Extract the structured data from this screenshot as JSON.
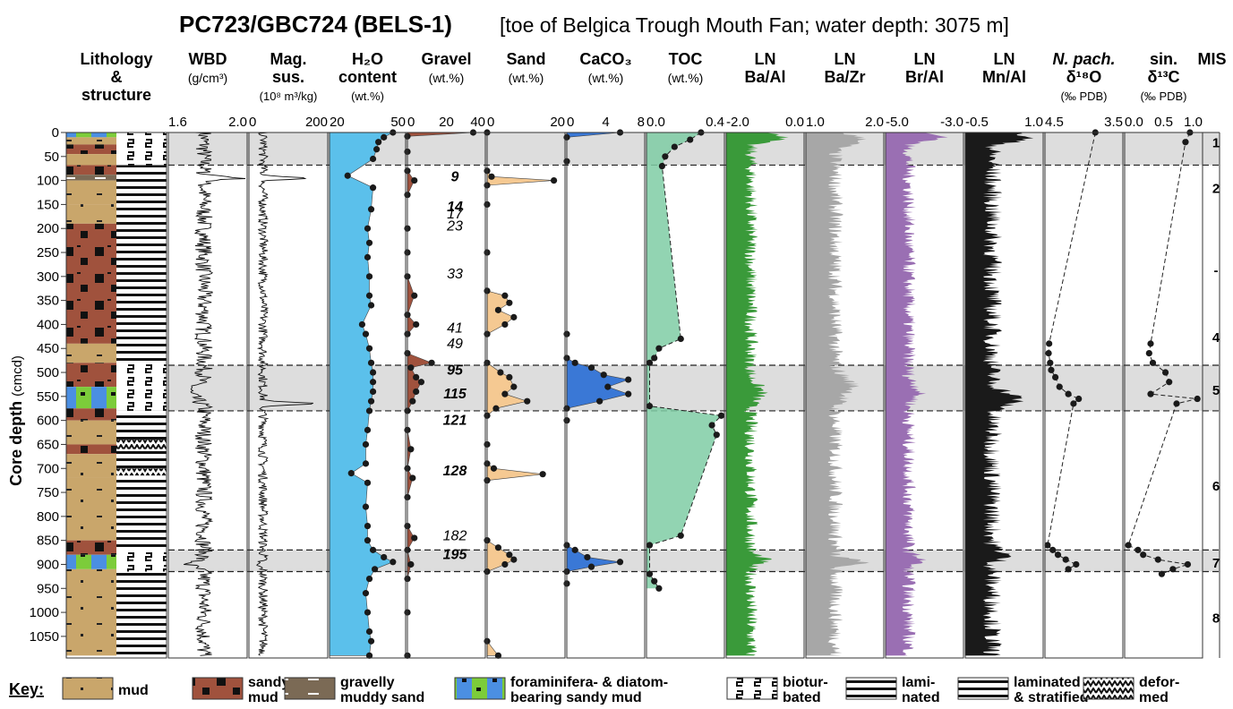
{
  "title": {
    "main": "PC723/GBC724 (BELS-1)",
    "sub": "[toe of Belgica Trough Mouth Fan; water depth: 3075 m]"
  },
  "y_axis": {
    "label": "Core depth",
    "unit": "(cmcd)",
    "ticks": [
      0,
      50,
      100,
      150,
      200,
      250,
      300,
      350,
      400,
      450,
      500,
      550,
      600,
      650,
      700,
      750,
      800,
      850,
      900,
      950,
      1000,
      1050
    ]
  },
  "columns": [
    {
      "id": "lith",
      "h1": "Lithology",
      "h2": "&",
      "h3": "structure",
      "ticks": []
    },
    {
      "id": "wbd",
      "h1": "WBD",
      "h2": "(g/cm³)",
      "h3": "",
      "ticks": [
        "1.6",
        "2.0"
      ]
    },
    {
      "id": "mag",
      "h1": "Mag.",
      "h2": "sus.",
      "h3": "(10⁸ m³/kg)",
      "ticks": [
        "0",
        "200"
      ]
    },
    {
      "id": "h2o",
      "h1": "H₂O",
      "h2": "content",
      "h3": "(wt.%)",
      "ticks": [
        "20",
        "50"
      ]
    },
    {
      "id": "gravel",
      "h1": "Gravel",
      "h2": "(wt.%)",
      "h3": "",
      "ticks": [
        "0",
        "20",
        "40"
      ]
    },
    {
      "id": "sand",
      "h1": "Sand",
      "h2": "(wt.%)",
      "h3": "",
      "ticks": [
        "0",
        "20"
      ]
    },
    {
      "id": "caco3",
      "h1": "CaCO₃",
      "h2": "(wt.%)",
      "h3": "",
      "ticks": [
        "0",
        "4",
        "8"
      ]
    },
    {
      "id": "toc",
      "h1": "TOC",
      "h2": "(wt.%)",
      "h3": "",
      "ticks": [
        "0.0",
        "0.4"
      ]
    },
    {
      "id": "baal",
      "h1": "LN",
      "h2": "Ba/Al",
      "h3": "",
      "ticks": [
        "-2.0",
        "0.0"
      ]
    },
    {
      "id": "bazr",
      "h1": "LN",
      "h2": "Ba/Zr",
      "h3": "",
      "ticks": [
        "1.0",
        "2.0"
      ]
    },
    {
      "id": "bral",
      "h1": "LN",
      "h2": "Br/Al",
      "h3": "",
      "ticks": [
        "-5.0",
        "-3.0"
      ]
    },
    {
      "id": "mnal",
      "h1": "LN",
      "h2": "Mn/Al",
      "h3": "",
      "ticks": [
        "-0.5",
        "1.0"
      ]
    },
    {
      "id": "d18o",
      "h1": "N. pach.",
      "h2": "δ¹⁸O",
      "h3": "(‰ PDB)",
      "ticks": "4.5",
      "ticks2": [
        "4.5",
        "3.5"
      ]
    },
    {
      "id": "d13c",
      "h1": "sin.",
      "h2": "δ¹³C",
      "h3": "(‰ PDB)",
      "ticks": "0.0",
      "ticks2": [
        "0.0",
        "0.5",
        "1.0"
      ]
    },
    {
      "id": "mis",
      "h1": "MIS",
      "h2": "",
      "h3": "",
      "ticks": []
    }
  ],
  "mis_stages": [
    {
      "label": "1",
      "depth": 20
    },
    {
      "label": "2",
      "depth": 115
    },
    {
      "label": "-",
      "depth": 285
    },
    {
      "label": "4",
      "depth": 425
    },
    {
      "label": "5",
      "depth": 535
    },
    {
      "label": "6",
      "depth": 735
    },
    {
      "label": "7",
      "depth": 895
    },
    {
      "label": "8",
      "depth": 1010
    }
  ],
  "shaded_intervals": [
    [
      0,
      68
    ],
    [
      485,
      580
    ],
    [
      870,
      915
    ]
  ],
  "ages": [
    {
      "text": "9",
      "depth": 92,
      "bold": true
    },
    {
      "text": "14",
      "depth": 155,
      "bold": true
    },
    {
      "text": "17",
      "depth": 170,
      "bold": false
    },
    {
      "text": "23",
      "depth": 195,
      "bold": false
    },
    {
      "text": "33",
      "depth": 295,
      "bold": false
    },
    {
      "text": "41",
      "depth": 408,
      "bold": false
    },
    {
      "text": "49",
      "depth": 440,
      "bold": false
    },
    {
      "text": "95",
      "depth": 495,
      "bold": true
    },
    {
      "text": "115",
      "depth": 545,
      "bold": true
    },
    {
      "text": "121",
      "depth": 600,
      "bold": true
    },
    {
      "text": "128",
      "depth": 705,
      "bold": true
    },
    {
      "text": "182",
      "depth": 840,
      "bold": false
    },
    {
      "text": "195",
      "depth": 880,
      "bold": true
    }
  ],
  "key": {
    "label": "Key:",
    "items": [
      {
        "id": "mud",
        "l1": "mud",
        "l2": ""
      },
      {
        "id": "sandy-mud",
        "l1": "sandy",
        "l2": "mud"
      },
      {
        "id": "gravelly",
        "l1": "gravelly",
        "l2": "muddy sand"
      },
      {
        "id": "foram",
        "l1": "foraminifera- & diatom-",
        "l2": "bearing sandy mud"
      },
      {
        "id": "bioturbated",
        "l1": "biotur-",
        "l2": "bated"
      },
      {
        "id": "laminated",
        "l1": "lami-",
        "l2": "nated"
      },
      {
        "id": "lam-strat",
        "l1": "laminated",
        "l2": "& stratified"
      },
      {
        "id": "deformed",
        "l1": "defor-",
        "l2": "med"
      }
    ]
  },
  "colors": {
    "h2o": "#5bc0eb",
    "gravel": "#a0523d",
    "sand": "#f5c992",
    "caco3": "#3a78d6",
    "toc": "#7fcca5",
    "baal": "#3a9a3a",
    "bazr": "#a7a7a7",
    "bral": "#9a6fb3",
    "mnal": "#1a1a1a",
    "shade": "#dddddd",
    "mud": "#c9a66b",
    "sandy_mud": "#a0523d",
    "gravelly": "#7b6a55",
    "foram_blue": "#4b8fe2",
    "foram_green": "#7ccc3a"
  },
  "chart_data": {
    "type": "line",
    "title": "PC723/GBC724 (BELS-1)",
    "ylabel": "Core depth (cmcd)",
    "ylim": [
      0,
      1095
    ],
    "y_inverted": true,
    "series": [
      {
        "name": "H₂O content",
        "unit": "wt.%",
        "xlim": [
          20,
          62
        ],
        "points": [
          [
            0,
            55
          ],
          [
            10,
            50
          ],
          [
            20,
            47
          ],
          [
            35,
            46
          ],
          [
            55,
            44
          ],
          [
            90,
            30
          ],
          [
            115,
            44
          ],
          [
            160,
            43
          ],
          [
            200,
            41
          ],
          [
            230,
            42
          ],
          [
            260,
            41
          ],
          [
            300,
            42
          ],
          [
            340,
            42
          ],
          [
            360,
            43
          ],
          [
            400,
            38
          ],
          [
            420,
            40
          ],
          [
            450,
            42
          ],
          [
            480,
            43
          ],
          [
            500,
            44
          ],
          [
            520,
            44
          ],
          [
            540,
            44
          ],
          [
            560,
            43
          ],
          [
            580,
            42
          ],
          [
            620,
            41
          ],
          [
            650,
            40
          ],
          [
            690,
            40
          ],
          [
            710,
            32
          ],
          [
            730,
            41
          ],
          [
            780,
            40
          ],
          [
            820,
            41
          ],
          [
            850,
            41
          ],
          [
            870,
            44
          ],
          [
            885,
            50
          ],
          [
            895,
            55
          ],
          [
            910,
            45
          ],
          [
            930,
            42
          ],
          [
            960,
            40
          ],
          [
            1000,
            41
          ],
          [
            1040,
            42
          ],
          [
            1060,
            43
          ],
          [
            1090,
            42
          ]
        ]
      },
      {
        "name": "Gravel",
        "unit": "wt.%",
        "xlim": [
          0,
          45
        ],
        "points": [
          [
            0,
            38
          ],
          [
            8,
            0
          ],
          [
            40,
            0
          ],
          [
            80,
            0
          ],
          [
            100,
            4
          ],
          [
            130,
            0
          ],
          [
            200,
            0
          ],
          [
            250,
            0
          ],
          [
            300,
            0
          ],
          [
            340,
            4
          ],
          [
            380,
            0
          ],
          [
            400,
            5
          ],
          [
            420,
            0
          ],
          [
            460,
            0
          ],
          [
            480,
            14
          ],
          [
            490,
            2
          ],
          [
            510,
            5
          ],
          [
            520,
            8
          ],
          [
            540,
            5
          ],
          [
            560,
            3
          ],
          [
            580,
            0
          ],
          [
            620,
            0
          ],
          [
            660,
            2
          ],
          [
            700,
            0
          ],
          [
            720,
            3
          ],
          [
            760,
            0
          ],
          [
            820,
            0
          ],
          [
            845,
            4
          ],
          [
            870,
            0
          ],
          [
            900,
            2
          ],
          [
            930,
            0
          ],
          [
            1000,
            0
          ],
          [
            1090,
            0
          ]
        ]
      },
      {
        "name": "Sand",
        "unit": "wt.%",
        "xlim": [
          0,
          35
        ],
        "points": [
          [
            0,
            0
          ],
          [
            80,
            0
          ],
          [
            92,
            2
          ],
          [
            100,
            30
          ],
          [
            110,
            0
          ],
          [
            150,
            0
          ],
          [
            250,
            0
          ],
          [
            330,
            0
          ],
          [
            340,
            8
          ],
          [
            355,
            10
          ],
          [
            370,
            5
          ],
          [
            385,
            12
          ],
          [
            400,
            8
          ],
          [
            420,
            0
          ],
          [
            480,
            0
          ],
          [
            500,
            6
          ],
          [
            510,
            10
          ],
          [
            530,
            12
          ],
          [
            545,
            8
          ],
          [
            560,
            18
          ],
          [
            575,
            4
          ],
          [
            590,
            0
          ],
          [
            650,
            0
          ],
          [
            690,
            0
          ],
          [
            700,
            3
          ],
          [
            712,
            25
          ],
          [
            725,
            0
          ],
          [
            850,
            0
          ],
          [
            865,
            5
          ],
          [
            880,
            10
          ],
          [
            890,
            12
          ],
          [
            900,
            8
          ],
          [
            915,
            0
          ],
          [
            1060,
            0
          ],
          [
            1090,
            5
          ]
        ]
      },
      {
        "name": "CaCO₃",
        "unit": "wt.%",
        "xlim": [
          0,
          9.5
        ],
        "points": [
          [
            0,
            6.5
          ],
          [
            10,
            0
          ],
          [
            60,
            0
          ],
          [
            420,
            0
          ],
          [
            470,
            0
          ],
          [
            480,
            1.0
          ],
          [
            490,
            3.0
          ],
          [
            505,
            4.5
          ],
          [
            515,
            7.5
          ],
          [
            530,
            5.0
          ],
          [
            545,
            7.5
          ],
          [
            560,
            4.0
          ],
          [
            575,
            0
          ],
          [
            600,
            0
          ],
          [
            860,
            0
          ],
          [
            870,
            1.0
          ],
          [
            885,
            2.5
          ],
          [
            895,
            6.5
          ],
          [
            905,
            3.0
          ],
          [
            915,
            0
          ],
          [
            940,
            0
          ]
        ]
      },
      {
        "name": "TOC",
        "unit": "wt.%",
        "xlim": [
          0,
          0.5
        ],
        "points": [
          [
            0,
            0.35
          ],
          [
            15,
            0.28
          ],
          [
            30,
            0.18
          ],
          [
            50,
            0.12
          ],
          [
            70,
            0.1
          ],
          [
            430,
            0.22
          ],
          [
            450,
            0.08
          ],
          [
            470,
            0.05
          ],
          [
            480,
            0.02
          ],
          [
            570,
            0.02
          ],
          [
            590,
            0.48
          ],
          [
            610,
            0.42
          ],
          [
            630,
            0.45
          ],
          [
            840,
            0.22
          ],
          [
            860,
            0.02
          ],
          [
            920,
            0.02
          ],
          [
            935,
            0.05
          ],
          [
            950,
            0.08
          ]
        ]
      },
      {
        "name": "N. pach. sin. δ¹⁸O",
        "unit": "‰ PDB",
        "xlim": [
          4.5,
          3.0
        ],
        "points": [
          [
            0,
            3.53
          ],
          [
            440,
            4.42
          ],
          [
            460,
            4.43
          ],
          [
            480,
            4.4
          ],
          [
            495,
            4.38
          ],
          [
            510,
            4.3
          ],
          [
            530,
            4.22
          ],
          [
            545,
            4.05
          ],
          [
            555,
            3.85
          ],
          [
            565,
            3.95
          ],
          [
            860,
            4.45
          ],
          [
            870,
            4.35
          ],
          [
            880,
            4.25
          ],
          [
            890,
            4.1
          ],
          [
            900,
            3.9
          ],
          [
            910,
            4.05
          ]
        ]
      },
      {
        "name": "N. pach. sin. δ¹³C",
        "unit": "‰ PDB",
        "xlim": [
          0.0,
          1.05
        ],
        "points": [
          [
            0,
            0.88
          ],
          [
            20,
            0.82
          ],
          [
            440,
            0.35
          ],
          [
            460,
            0.33
          ],
          [
            480,
            0.38
          ],
          [
            500,
            0.55
          ],
          [
            520,
            0.6
          ],
          [
            545,
            0.35
          ],
          [
            555,
            0.98
          ],
          [
            565,
            0.7
          ],
          [
            860,
            0.05
          ],
          [
            870,
            0.18
          ],
          [
            880,
            0.25
          ],
          [
            890,
            0.45
          ],
          [
            900,
            0.85
          ],
          [
            910,
            0.65
          ],
          [
            920,
            0.5
          ]
        ]
      }
    ]
  }
}
